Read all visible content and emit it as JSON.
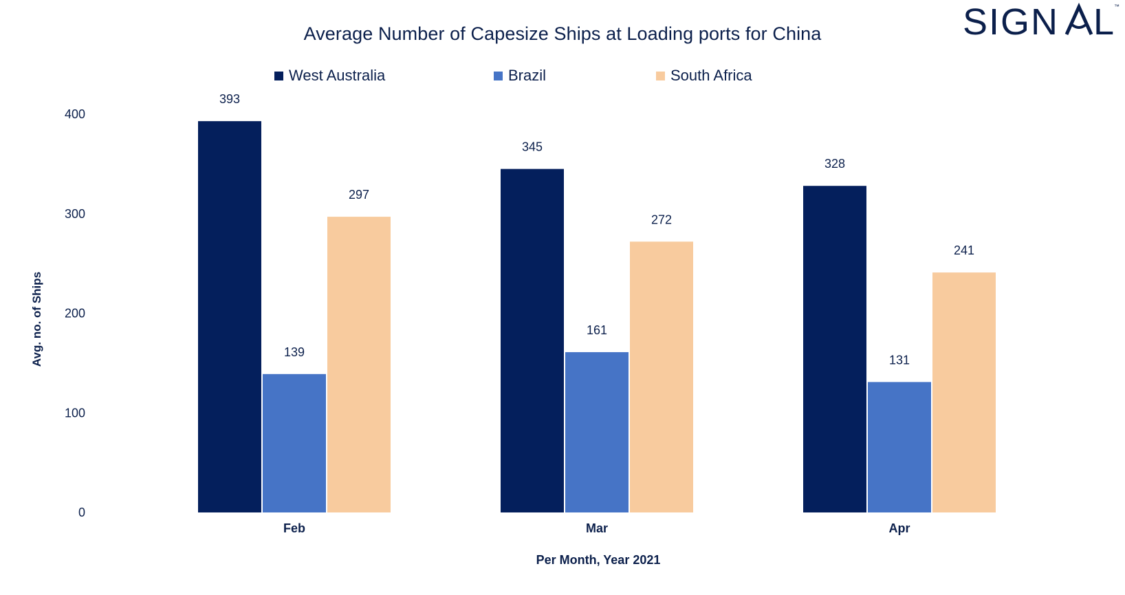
{
  "brand": {
    "logo_text": "SIGNAL",
    "trademark": "™",
    "color": "#0b1f4b"
  },
  "chart_data": {
    "type": "bar",
    "title": "Average Number of Capesize Ships at Loading ports for China",
    "xlabel": "Per Month, Year 2021",
    "ylabel": "Avg. no. of Ships",
    "categories": [
      "Feb",
      "Mar",
      "Apr"
    ],
    "series": [
      {
        "name": "West Australia",
        "color": "#041f5c",
        "values": [
          393,
          345,
          328
        ]
      },
      {
        "name": "Brazil",
        "color": "#4674c6",
        "values": [
          139,
          161,
          131
        ]
      },
      {
        "name": "South Africa",
        "color": "#f8cb9e",
        "values": [
          297,
          272,
          241
        ]
      }
    ],
    "ylim": [
      0,
      400
    ],
    "yticks": [
      "0",
      "100",
      "200",
      "300",
      "400"
    ],
    "grid": false,
    "legend_position": "top",
    "data_labels": true
  }
}
